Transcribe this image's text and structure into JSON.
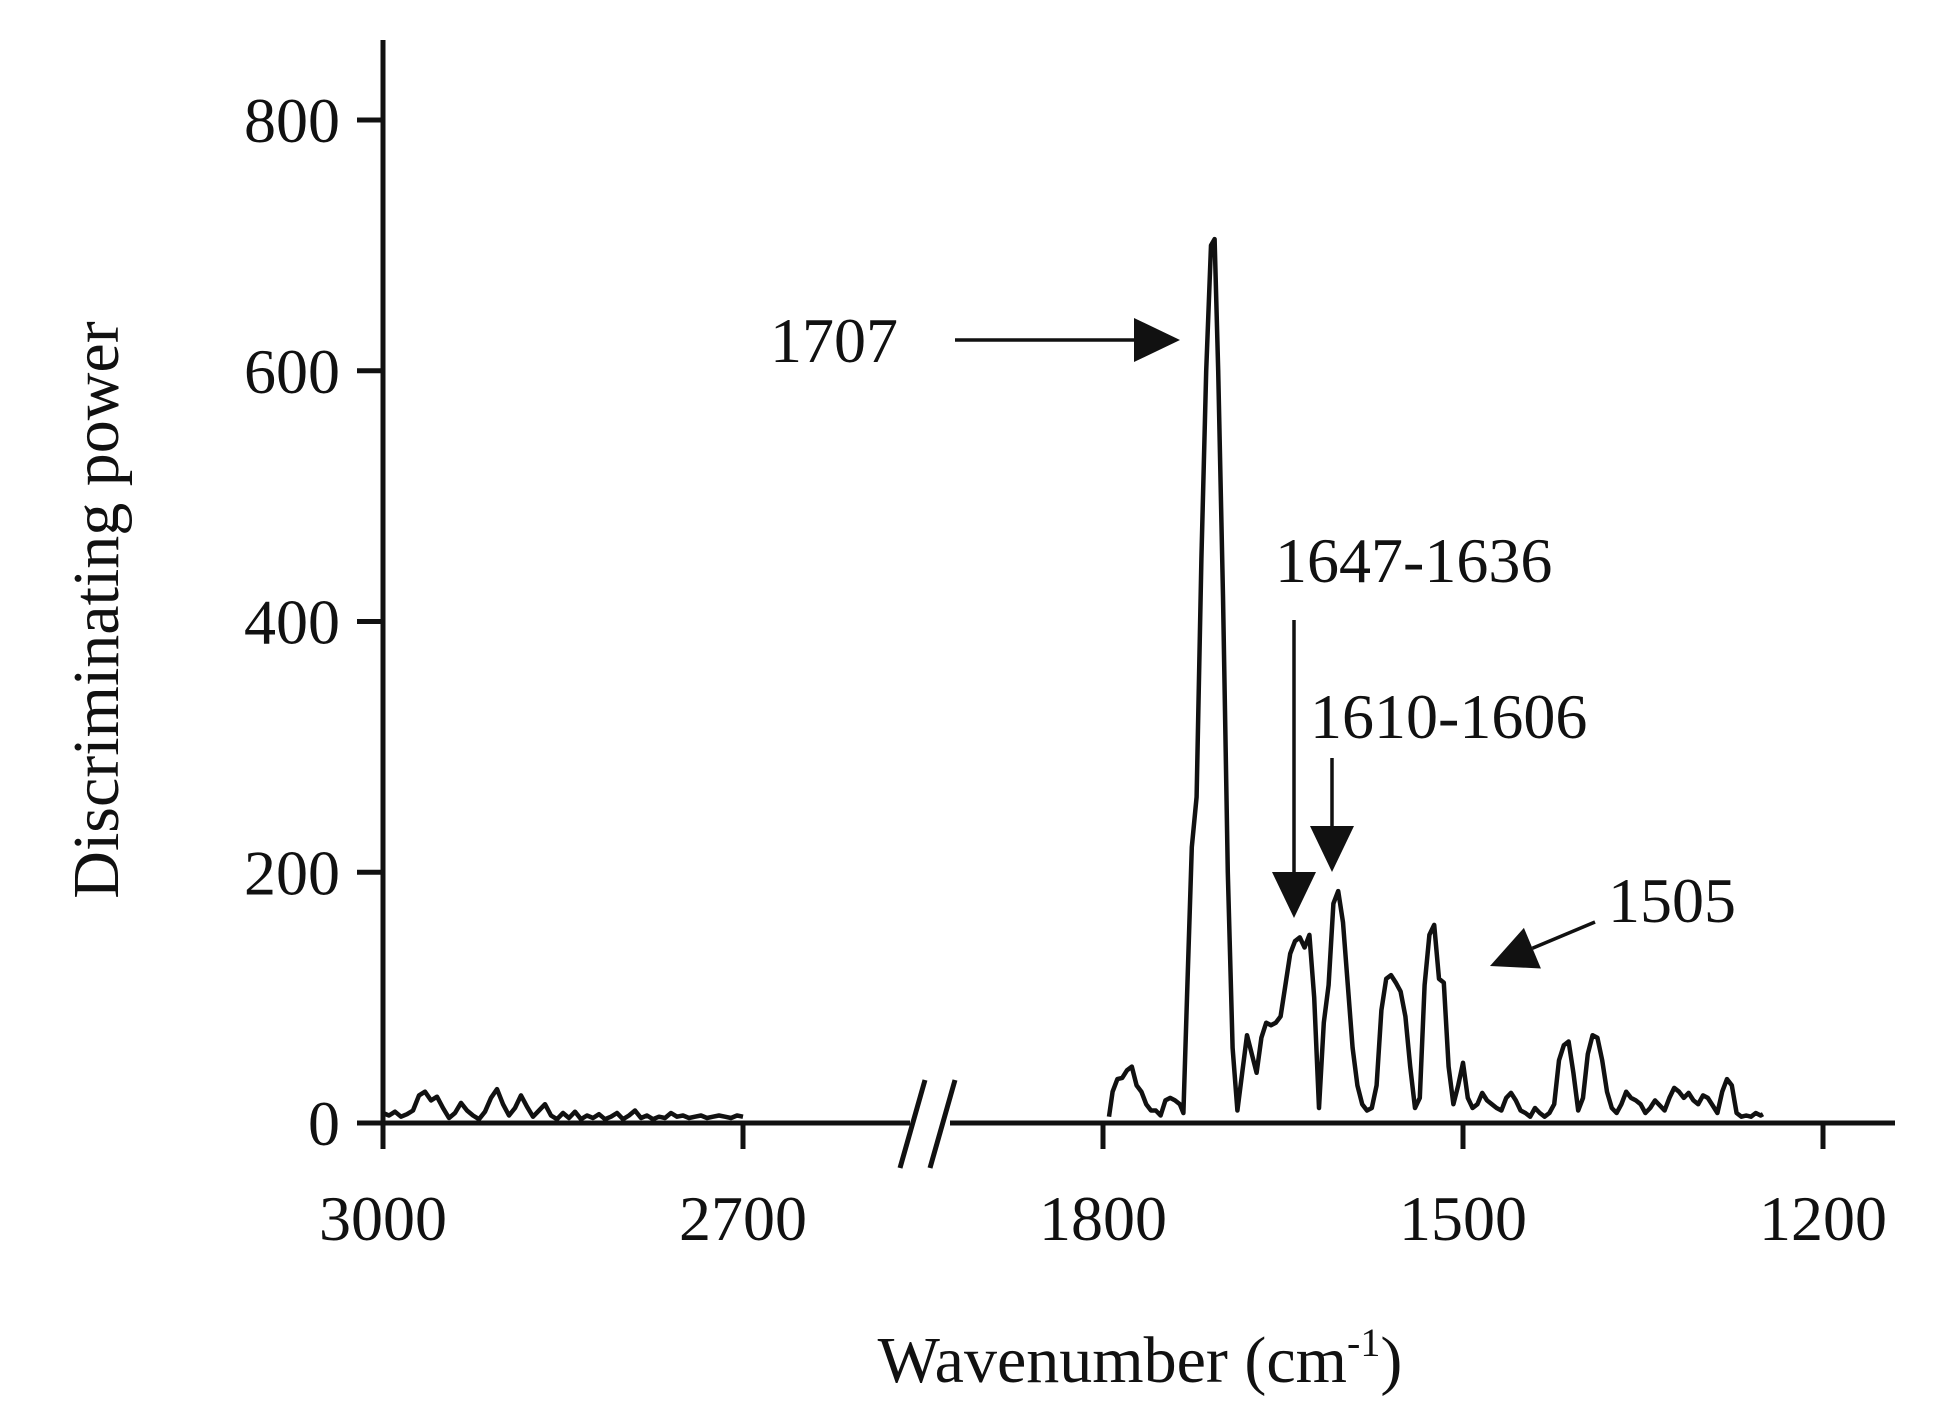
{
  "chart_data": {
    "type": "line",
    "xlabel": "Wavenumber (cm",
    "xlabel_sup": "-1",
    "xlabel_close": ")",
    "ylabel": "Discriminating power",
    "ylim": [
      0,
      800
    ],
    "x_reversed": true,
    "x_break": true,
    "grid": false,
    "x_ticks": [
      3000,
      2700,
      1800,
      1500,
      1200
    ],
    "y_ticks": [
      0,
      200,
      400,
      600,
      800
    ],
    "segments": [
      {
        "xlim": [
          3000,
          2700
        ],
        "points": [
          [
            3000,
            8
          ],
          [
            2995,
            6
          ],
          [
            2990,
            9
          ],
          [
            2985,
            5
          ],
          [
            2980,
            7
          ],
          [
            2975,
            10
          ],
          [
            2970,
            22
          ],
          [
            2965,
            25
          ],
          [
            2960,
            18
          ],
          [
            2955,
            21
          ],
          [
            2950,
            12
          ],
          [
            2945,
            4
          ],
          [
            2940,
            8
          ],
          [
            2935,
            16
          ],
          [
            2930,
            10
          ],
          [
            2925,
            6
          ],
          [
            2920,
            3
          ],
          [
            2915,
            9
          ],
          [
            2910,
            20
          ],
          [
            2905,
            27
          ],
          [
            2900,
            15
          ],
          [
            2895,
            6
          ],
          [
            2890,
            12
          ],
          [
            2885,
            22
          ],
          [
            2880,
            13
          ],
          [
            2875,
            5
          ],
          [
            2870,
            10
          ],
          [
            2865,
            15
          ],
          [
            2860,
            6
          ],
          [
            2855,
            3
          ],
          [
            2850,
            8
          ],
          [
            2845,
            4
          ],
          [
            2840,
            9
          ],
          [
            2835,
            3
          ],
          [
            2830,
            6
          ],
          [
            2825,
            4
          ],
          [
            2820,
            7
          ],
          [
            2815,
            3
          ],
          [
            2810,
            5
          ],
          [
            2805,
            8
          ],
          [
            2800,
            3
          ],
          [
            2795,
            6
          ],
          [
            2790,
            10
          ],
          [
            2785,
            4
          ],
          [
            2780,
            6
          ],
          [
            2775,
            3
          ],
          [
            2770,
            5
          ],
          [
            2765,
            4
          ],
          [
            2760,
            8
          ],
          [
            2755,
            5
          ],
          [
            2750,
            6
          ],
          [
            2745,
            4
          ],
          [
            2740,
            5
          ],
          [
            2735,
            6
          ],
          [
            2730,
            4
          ],
          [
            2725,
            5
          ],
          [
            2720,
            6
          ],
          [
            2715,
            5
          ],
          [
            2710,
            4
          ],
          [
            2705,
            6
          ],
          [
            2700,
            5
          ]
        ]
      },
      {
        "xlim": [
          1800,
          1200
        ],
        "points": [
          [
            1795,
            5
          ],
          [
            1792,
            25
          ],
          [
            1788,
            35
          ],
          [
            1784,
            36
          ],
          [
            1780,
            42
          ],
          [
            1776,
            45
          ],
          [
            1772,
            30
          ],
          [
            1768,
            25
          ],
          [
            1764,
            15
          ],
          [
            1760,
            10
          ],
          [
            1756,
            10
          ],
          [
            1752,
            6
          ],
          [
            1748,
            18
          ],
          [
            1744,
            20
          ],
          [
            1740,
            18
          ],
          [
            1736,
            15
          ],
          [
            1733,
            8
          ],
          [
            1730,
            100
          ],
          [
            1726,
            220
          ],
          [
            1722,
            260
          ],
          [
            1718,
            450
          ],
          [
            1714,
            600
          ],
          [
            1710,
            700
          ],
          [
            1707,
            705
          ],
          [
            1704,
            600
          ],
          [
            1700,
            420
          ],
          [
            1696,
            200
          ],
          [
            1692,
            60
          ],
          [
            1688,
            10
          ],
          [
            1684,
            40
          ],
          [
            1680,
            70
          ],
          [
            1676,
            55
          ],
          [
            1672,
            40
          ],
          [
            1668,
            68
          ],
          [
            1664,
            80
          ],
          [
            1660,
            78
          ],
          [
            1656,
            80
          ],
          [
            1652,
            85
          ],
          [
            1648,
            110
          ],
          [
            1644,
            135
          ],
          [
            1640,
            145
          ],
          [
            1636,
            148
          ],
          [
            1632,
            140
          ],
          [
            1628,
            150
          ],
          [
            1624,
            100
          ],
          [
            1620,
            12
          ],
          [
            1616,
            80
          ],
          [
            1612,
            110
          ],
          [
            1608,
            175
          ],
          [
            1604,
            185
          ],
          [
            1600,
            160
          ],
          [
            1596,
            110
          ],
          [
            1592,
            60
          ],
          [
            1588,
            30
          ],
          [
            1584,
            15
          ],
          [
            1580,
            10
          ],
          [
            1576,
            12
          ],
          [
            1572,
            30
          ],
          [
            1568,
            90
          ],
          [
            1564,
            115
          ],
          [
            1560,
            118
          ],
          [
            1556,
            112
          ],
          [
            1552,
            105
          ],
          [
            1548,
            85
          ],
          [
            1544,
            45
          ],
          [
            1540,
            12
          ],
          [
            1536,
            20
          ],
          [
            1532,
            110
          ],
          [
            1528,
            150
          ],
          [
            1524,
            158
          ],
          [
            1520,
            115
          ],
          [
            1516,
            112
          ],
          [
            1512,
            45
          ],
          [
            1508,
            15
          ],
          [
            1504,
            30
          ],
          [
            1500,
            48
          ],
          [
            1496,
            20
          ],
          [
            1492,
            12
          ],
          [
            1488,
            15
          ],
          [
            1484,
            24
          ],
          [
            1480,
            18
          ],
          [
            1476,
            15
          ],
          [
            1472,
            12
          ],
          [
            1468,
            10
          ],
          [
            1464,
            20
          ],
          [
            1460,
            24
          ],
          [
            1456,
            18
          ],
          [
            1452,
            10
          ],
          [
            1448,
            8
          ],
          [
            1444,
            5
          ],
          [
            1440,
            12
          ],
          [
            1436,
            8
          ],
          [
            1432,
            5
          ],
          [
            1428,
            8
          ],
          [
            1424,
            15
          ],
          [
            1420,
            50
          ],
          [
            1416,
            62
          ],
          [
            1412,
            65
          ],
          [
            1408,
            40
          ],
          [
            1404,
            10
          ],
          [
            1400,
            20
          ],
          [
            1396,
            55
          ],
          [
            1392,
            70
          ],
          [
            1388,
            68
          ],
          [
            1384,
            50
          ],
          [
            1380,
            25
          ],
          [
            1376,
            12
          ],
          [
            1372,
            8
          ],
          [
            1368,
            15
          ],
          [
            1364,
            25
          ],
          [
            1360,
            20
          ],
          [
            1356,
            18
          ],
          [
            1352,
            15
          ],
          [
            1348,
            8
          ],
          [
            1344,
            12
          ],
          [
            1340,
            18
          ],
          [
            1336,
            14
          ],
          [
            1332,
            10
          ],
          [
            1328,
            20
          ],
          [
            1324,
            28
          ],
          [
            1320,
            25
          ],
          [
            1316,
            20
          ],
          [
            1312,
            24
          ],
          [
            1308,
            18
          ],
          [
            1304,
            15
          ],
          [
            1300,
            22
          ],
          [
            1296,
            20
          ],
          [
            1292,
            14
          ],
          [
            1288,
            8
          ],
          [
            1284,
            25
          ],
          [
            1280,
            35
          ],
          [
            1276,
            30
          ],
          [
            1272,
            8
          ],
          [
            1268,
            5
          ],
          [
            1264,
            6
          ],
          [
            1260,
            5
          ],
          [
            1256,
            8
          ],
          [
            1252,
            6
          ],
          [
            1250,
            7
          ]
        ]
      }
    ],
    "annotations": [
      {
        "label": "1707",
        "target": [
          1707,
          705
        ]
      },
      {
        "label": "1647-1636",
        "target": [
          1640,
          160
        ]
      },
      {
        "label": "1610-1606",
        "target": [
          1606,
          195
        ]
      },
      {
        "label": "1505",
        "target": [
          1500,
          120
        ]
      }
    ]
  }
}
